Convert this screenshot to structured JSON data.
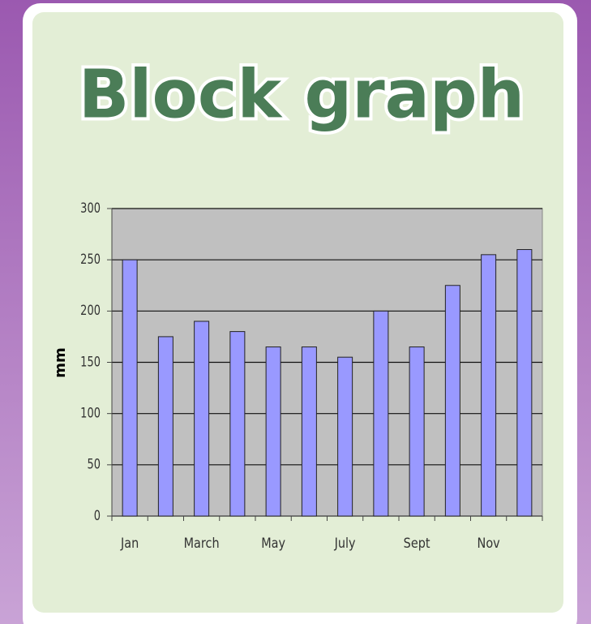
{
  "chart_data": {
    "type": "bar",
    "title": "Block graph",
    "y_label": "mm",
    "categories": [
      "Jan",
      null,
      "March",
      null,
      "May",
      null,
      "July",
      null,
      "Sept",
      null,
      "Nov",
      null
    ],
    "values": [
      250,
      175,
      190,
      180,
      165,
      165,
      155,
      200,
      165,
      225,
      255,
      260
    ],
    "color": "#9999ff",
    "ylim": [
      0,
      300
    ],
    "yticks": [
      0,
      50,
      100,
      150,
      200,
      250,
      300
    ],
    "grid": true
  }
}
